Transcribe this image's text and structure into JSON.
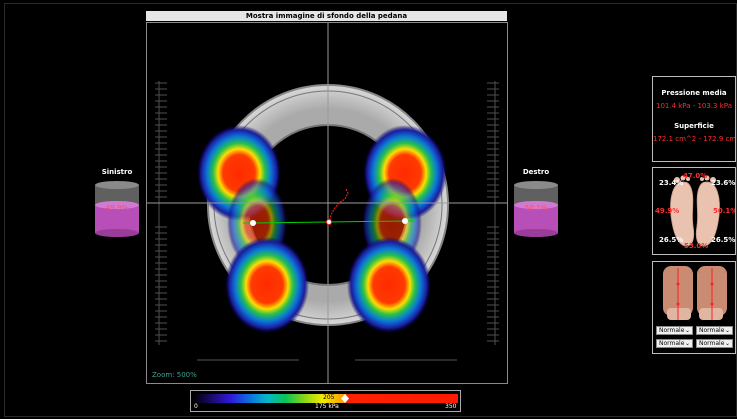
{
  "title": "Mostra immagine di sfondo della pedana",
  "zoom_label": "Zoom: 500%",
  "left": {
    "label": "Sinistro",
    "value": "49.9%"
  },
  "right": {
    "label": "Destro",
    "value": "50.1%"
  },
  "pressure_panel": {
    "pressure_title": "Pressione media",
    "pressure_values": "101.4 kPa - 103.3 kPa",
    "surface_title": "Superficie",
    "surface_values": "172.1 cm^2 - 172.9 cm"
  },
  "foot_panel": {
    "top_center": "47.0%",
    "top_left": "23.4%",
    "top_right": "23.6%",
    "mid_left": "49.9%",
    "mid_right": "50.1%",
    "bottom_left": "26.5%",
    "bottom_right": "26.5%",
    "bottom_center": "53.0%"
  },
  "posture_panel": {
    "selects": [
      "Normale",
      "Normale",
      "Normale",
      "Normale"
    ]
  },
  "color_scale": {
    "min": "0",
    "mid": "175 kPa",
    "max": "350",
    "marker": "205"
  },
  "colors": {
    "accent_red": "#ff2d2d",
    "cylinder_fill": "#b84fb8",
    "zoom_text": "#3fa090"
  }
}
